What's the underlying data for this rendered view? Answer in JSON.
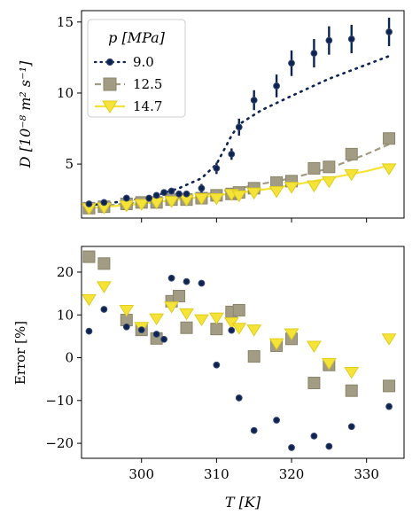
{
  "chart_data": [
    {
      "type": "scatter",
      "panel": "top",
      "title": "",
      "xlabel": "",
      "ylabel": "D [10⁻⁸ m² s⁻¹]",
      "xlim": [
        292,
        335
      ],
      "ylim": [
        1.2,
        15.8
      ],
      "xticks": [
        300,
        310,
        320,
        330
      ],
      "xtick_labels": [
        "",
        "",
        "",
        ""
      ],
      "yticks": [
        5,
        10,
        15
      ],
      "ytick_labels": [
        "5",
        "10",
        "15"
      ],
      "legend": {
        "title": "p [MPa]",
        "placement": "top-left",
        "entries": [
          "9.0",
          "12.5",
          "14.7"
        ]
      },
      "series": [
        {
          "name": "9.0",
          "color": "#0d2350",
          "marker": "circle",
          "style": "dotted-model-line",
          "points": [
            {
              "x": 293,
              "y": 2.2,
              "err": 0.2
            },
            {
              "x": 295,
              "y": 2.3,
              "err": 0.2
            },
            {
              "x": 298,
              "y": 2.6,
              "err": 0.2
            },
            {
              "x": 301,
              "y": 2.6,
              "err": 0.2
            },
            {
              "x": 302,
              "y": 2.8,
              "err": 0.2
            },
            {
              "x": 303,
              "y": 3.0,
              "err": 0.2
            },
            {
              "x": 304,
              "y": 3.1,
              "err": 0.2
            },
            {
              "x": 305,
              "y": 2.9,
              "err": 0.2
            },
            {
              "x": 306,
              "y": 2.9,
              "err": 0.2
            },
            {
              "x": 308,
              "y": 3.3,
              "err": 0.3
            },
            {
              "x": 310,
              "y": 4.7,
              "err": 0.4
            },
            {
              "x": 312,
              "y": 5.7,
              "err": 0.4
            },
            {
              "x": 313,
              "y": 7.6,
              "err": 0.6
            },
            {
              "x": 315,
              "y": 9.5,
              "err": 0.7
            },
            {
              "x": 318,
              "y": 10.5,
              "err": 0.8
            },
            {
              "x": 320,
              "y": 12.1,
              "err": 0.9
            },
            {
              "x": 323,
              "y": 12.8,
              "err": 1.0
            },
            {
              "x": 325,
              "y": 13.7,
              "err": 1.0
            },
            {
              "x": 328,
              "y": 13.8,
              "err": 1.0
            },
            {
              "x": 333,
              "y": 14.3,
              "err": 1.0
            }
          ],
          "model": [
            {
              "x": 293,
              "y": 2.1
            },
            {
              "x": 298,
              "y": 2.4
            },
            {
              "x": 302,
              "y": 2.8
            },
            {
              "x": 305,
              "y": 3.3
            },
            {
              "x": 308,
              "y": 4.0
            },
            {
              "x": 310,
              "y": 5.0
            },
            {
              "x": 311,
              "y": 6.0
            },
            {
              "x": 312,
              "y": 7.0
            },
            {
              "x": 313,
              "y": 7.8
            },
            {
              "x": 316,
              "y": 8.8
            },
            {
              "x": 320,
              "y": 9.8
            },
            {
              "x": 325,
              "y": 11.0
            },
            {
              "x": 330,
              "y": 12.0
            },
            {
              "x": 333,
              "y": 12.6
            }
          ]
        },
        {
          "name": "12.5",
          "color": "#a19c83",
          "marker": "square",
          "style": "dashed-model-line",
          "points": [
            {
              "x": 293,
              "y": 1.9
            },
            {
              "x": 295,
              "y": 2.0
            },
            {
              "x": 298,
              "y": 2.2
            },
            {
              "x": 300,
              "y": 2.3
            },
            {
              "x": 302,
              "y": 2.3
            },
            {
              "x": 304,
              "y": 2.5
            },
            {
              "x": 306,
              "y": 2.5
            },
            {
              "x": 308,
              "y": 2.6
            },
            {
              "x": 310,
              "y": 2.8
            },
            {
              "x": 312,
              "y": 2.9
            },
            {
              "x": 313,
              "y": 3.0
            },
            {
              "x": 315,
              "y": 3.3
            },
            {
              "x": 318,
              "y": 3.7
            },
            {
              "x": 320,
              "y": 3.8
            },
            {
              "x": 323,
              "y": 4.7
            },
            {
              "x": 325,
              "y": 4.8
            },
            {
              "x": 328,
              "y": 5.7
            },
            {
              "x": 333,
              "y": 6.8
            }
          ],
          "model": [
            {
              "x": 293,
              "y": 2.0
            },
            {
              "x": 300,
              "y": 2.3
            },
            {
              "x": 305,
              "y": 2.6
            },
            {
              "x": 310,
              "y": 3.0
            },
            {
              "x": 315,
              "y": 3.5
            },
            {
              "x": 320,
              "y": 4.0
            },
            {
              "x": 325,
              "y": 4.7
            },
            {
              "x": 330,
              "y": 5.7
            },
            {
              "x": 333,
              "y": 6.4
            }
          ]
        },
        {
          "name": "14.7",
          "color": "#f5e337",
          "marker": "triangle-down",
          "style": "solid-model-line",
          "points": [
            {
              "x": 293,
              "y": 1.9
            },
            {
              "x": 295,
              "y": 1.95
            },
            {
              "x": 298,
              "y": 2.1
            },
            {
              "x": 300,
              "y": 2.2
            },
            {
              "x": 302,
              "y": 2.3
            },
            {
              "x": 304,
              "y": 2.4
            },
            {
              "x": 306,
              "y": 2.5
            },
            {
              "x": 308,
              "y": 2.6
            },
            {
              "x": 310,
              "y": 2.6
            },
            {
              "x": 312,
              "y": 2.9
            },
            {
              "x": 313,
              "y": 2.8
            },
            {
              "x": 315,
              "y": 3.0
            },
            {
              "x": 318,
              "y": 3.1
            },
            {
              "x": 320,
              "y": 3.4
            },
            {
              "x": 323,
              "y": 3.5
            },
            {
              "x": 325,
              "y": 3.8
            },
            {
              "x": 328,
              "y": 4.3
            },
            {
              "x": 333,
              "y": 4.7
            }
          ],
          "model": [
            {
              "x": 293,
              "y": 1.9
            },
            {
              "x": 300,
              "y": 2.2
            },
            {
              "x": 305,
              "y": 2.5
            },
            {
              "x": 310,
              "y": 2.8
            },
            {
              "x": 315,
              "y": 3.1
            },
            {
              "x": 320,
              "y": 3.5
            },
            {
              "x": 325,
              "y": 4.0
            },
            {
              "x": 330,
              "y": 4.5
            },
            {
              "x": 333,
              "y": 4.9
            }
          ]
        }
      ]
    },
    {
      "type": "scatter",
      "panel": "bottom",
      "title": "",
      "xlabel": "T [K]",
      "ylabel": "Error [%]",
      "xlim": [
        292,
        335
      ],
      "ylim": [
        -23.5,
        26
      ],
      "xticks": [
        300,
        310,
        320,
        330
      ],
      "xtick_labels": [
        "300",
        "310",
        "320",
        "330"
      ],
      "yticks": [
        -20,
        -10,
        0,
        10,
        20
      ],
      "ytick_labels": [
        "−20",
        "−10",
        "0",
        "10",
        "20"
      ],
      "series": [
        {
          "name": "9.0",
          "color": "#0d2350",
          "marker": "circle",
          "points": [
            {
              "x": 293,
              "y": 6.2
            },
            {
              "x": 295,
              "y": 11.3
            },
            {
              "x": 298,
              "y": 7.2
            },
            {
              "x": 300,
              "y": 6.5
            },
            {
              "x": 302,
              "y": 5.5
            },
            {
              "x": 303,
              "y": 4.3
            },
            {
              "x": 304,
              "y": 18.6
            },
            {
              "x": 306,
              "y": 17.8
            },
            {
              "x": 308,
              "y": 17.4
            },
            {
              "x": 310,
              "y": -1.7
            },
            {
              "x": 312,
              "y": 6.4
            },
            {
              "x": 313,
              "y": -9.4
            },
            {
              "x": 315,
              "y": -17.0
            },
            {
              "x": 318,
              "y": -14.6
            },
            {
              "x": 320,
              "y": -21.0
            },
            {
              "x": 323,
              "y": -18.3
            },
            {
              "x": 325,
              "y": -20.7
            },
            {
              "x": 328,
              "y": -16.1
            },
            {
              "x": 333,
              "y": -11.4
            }
          ]
        },
        {
          "name": "12.5",
          "color": "#a19c83",
          "marker": "square",
          "points": [
            {
              "x": 293,
              "y": 23.6
            },
            {
              "x": 295,
              "y": 22.0
            },
            {
              "x": 298,
              "y": 8.8
            },
            {
              "x": 300,
              "y": 6.5
            },
            {
              "x": 302,
              "y": 4.5
            },
            {
              "x": 304,
              "y": 13.2
            },
            {
              "x": 305,
              "y": 14.4
            },
            {
              "x": 306,
              "y": 7.0
            },
            {
              "x": 310,
              "y": 6.7
            },
            {
              "x": 312,
              "y": 10.7
            },
            {
              "x": 313,
              "y": 11.1
            },
            {
              "x": 315,
              "y": 0.3
            },
            {
              "x": 318,
              "y": 2.8
            },
            {
              "x": 320,
              "y": 4.4
            },
            {
              "x": 323,
              "y": -5.9
            },
            {
              "x": 325,
              "y": -1.7
            },
            {
              "x": 328,
              "y": -7.7
            },
            {
              "x": 333,
              "y": -6.6
            }
          ]
        },
        {
          "name": "14.7",
          "color": "#f5e337",
          "marker": "triangle-down",
          "points": [
            {
              "x": 293,
              "y": 13.7
            },
            {
              "x": 295,
              "y": 16.7
            },
            {
              "x": 298,
              "y": 11.2
            },
            {
              "x": 300,
              "y": 7.2
            },
            {
              "x": 302,
              "y": 9.2
            },
            {
              "x": 304,
              "y": 12.0
            },
            {
              "x": 306,
              "y": 10.4
            },
            {
              "x": 308,
              "y": 9.0
            },
            {
              "x": 310,
              "y": 9.4
            },
            {
              "x": 312,
              "y": 8.3
            },
            {
              "x": 313,
              "y": 7.0
            },
            {
              "x": 315,
              "y": 6.6
            },
            {
              "x": 318,
              "y": 3.4
            },
            {
              "x": 320,
              "y": 5.7
            },
            {
              "x": 323,
              "y": 2.8
            },
            {
              "x": 325,
              "y": -1.2
            },
            {
              "x": 328,
              "y": -3.3
            },
            {
              "x": 333,
              "y": 4.5
            }
          ]
        }
      ]
    }
  ]
}
